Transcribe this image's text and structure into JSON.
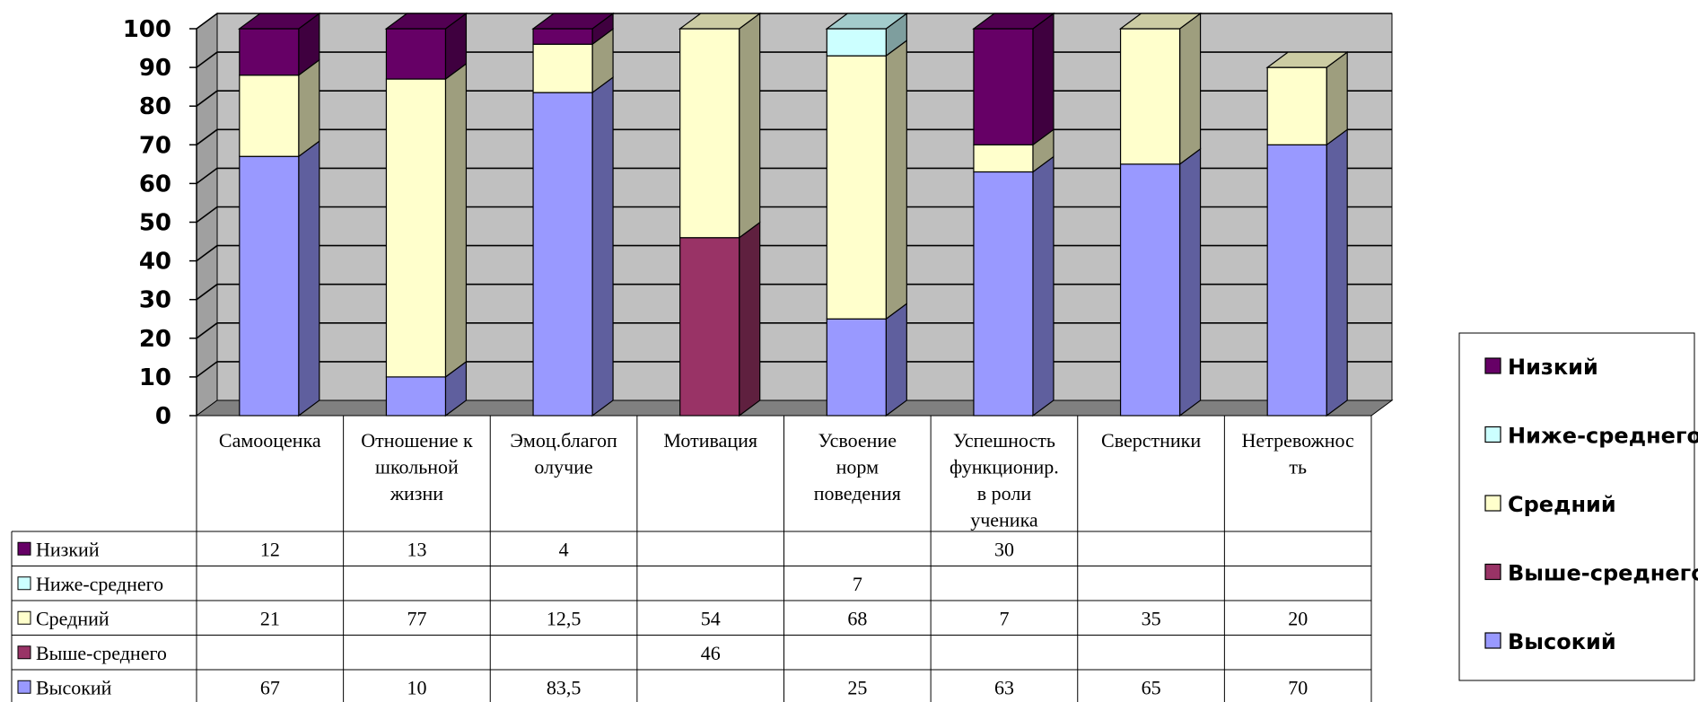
{
  "chart_data": {
    "type": "bar",
    "stacked": true,
    "three_d": true,
    "categories": [
      "Самооценка",
      "Отношение к школьной жизни",
      "Эмоц.благополучие",
      "Мотивация",
      "Усвоение норм поведения",
      "Успешность функционир. в роли ученика",
      "Сверстники",
      "Нетревожность"
    ],
    "category_lines": [
      [
        "Самооценка"
      ],
      [
        "Отношение к",
        "школьной",
        "жизни"
      ],
      [
        "Эмоц.благоп",
        "олучие"
      ],
      [
        "Мотивация"
      ],
      [
        "Усвоение",
        "норм",
        "поведения"
      ],
      [
        "Успешность",
        "функционир.",
        "в роли",
        "ученика"
      ],
      [
        "Сверстники"
      ],
      [
        "Нетревожнос",
        "ть"
      ]
    ],
    "series": [
      {
        "name": "Высокий",
        "color": "#9999FF",
        "values": [
          67,
          10,
          83.5,
          null,
          25,
          63,
          65,
          70
        ]
      },
      {
        "name": "Выше-среднего",
        "color": "#993366",
        "values": [
          null,
          null,
          null,
          46,
          null,
          null,
          null,
          null
        ]
      },
      {
        "name": "Средний",
        "color": "#FFFFCC",
        "values": [
          21,
          77,
          12.5,
          54,
          68,
          7,
          35,
          20
        ]
      },
      {
        "name": "Ниже-среднего",
        "color": "#CCFFFF",
        "values": [
          null,
          null,
          null,
          null,
          7,
          null,
          null,
          null
        ]
      },
      {
        "name": "Низкий",
        "color": "#660066",
        "values": [
          12,
          13,
          4,
          null,
          null,
          30,
          null,
          null
        ]
      }
    ],
    "table_rows": [
      {
        "name": "Низкий",
        "cells": [
          "12",
          "13",
          "4",
          "",
          "",
          "30",
          "",
          ""
        ]
      },
      {
        "name": "Ниже-среднего",
        "cells": [
          "",
          "",
          "",
          "",
          "7",
          "",
          "",
          ""
        ]
      },
      {
        "name": "Средний",
        "cells": [
          "21",
          "77",
          "12,5",
          "54",
          "68",
          "7",
          "35",
          "20"
        ]
      },
      {
        "name": "Выше-среднего",
        "cells": [
          "",
          "",
          "",
          "46",
          "",
          "",
          "",
          ""
        ]
      },
      {
        "name": "Высокий",
        "cells": [
          "67",
          "10",
          "83,5",
          "",
          "25",
          "63",
          "65",
          "70"
        ]
      }
    ],
    "legend_order": [
      "Низкий",
      "Ниже-среднего",
      "Средний",
      "Выше-среднего",
      "Высокий"
    ],
    "legend_placement": "right",
    "ylim": [
      0,
      100
    ],
    "yticks": [
      "0",
      "10",
      "20",
      "30",
      "40",
      "50",
      "60",
      "70",
      "80",
      "90",
      "100"
    ],
    "grid": true,
    "colors": {
      "wall": "#C0C0C0",
      "floor": "#808080",
      "side_wall": "#A0A0A0"
    }
  }
}
